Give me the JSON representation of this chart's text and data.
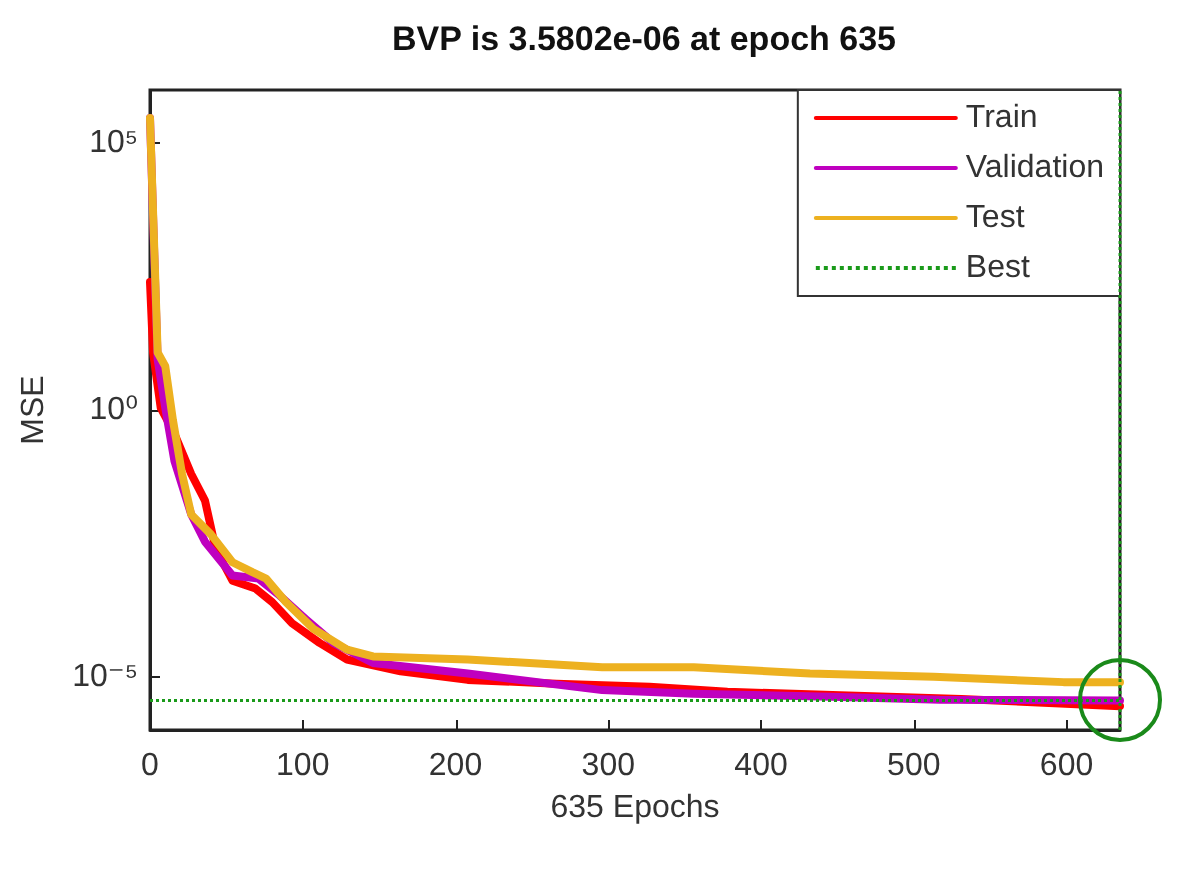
{
  "chart_data": {
    "type": "line",
    "title": "BVP is 3.5802e-06 at epoch 635",
    "xlabel": "635 Epochs",
    "ylabel": "MSE",
    "log": "y",
    "grid": false,
    "legend": "top right",
    "line_style": "solid",
    "marker": "none",
    "xlim": [
      0,
      635
    ],
    "xticks": [
      0,
      100,
      200,
      300,
      400,
      500,
      600
    ],
    "ylim": [
      1e-06,
      1000000.0
    ],
    "yticks": [
      {
        "value": 1e-05,
        "label": "10⁻⁵"
      },
      {
        "value": 1,
        "label": "10⁰"
      },
      {
        "value": 100000.0,
        "label": "10⁵"
      }
    ],
    "series": [
      {
        "name": "Train",
        "color": "#ff0000",
        "x": [
          0,
          2,
          7,
          16,
          27,
          36,
          43,
          54,
          69,
          80,
          93,
          111,
          129,
          164,
          208,
          266,
          327,
          378,
          452,
          531,
          635
        ],
        "values": [
          250,
          12,
          1.1,
          0.36,
          0.063,
          0.02,
          0.0025,
          0.00063,
          0.00045,
          0.00025,
          0.0001,
          4.3e-05,
          2.1e-05,
          1.26e-05,
          8.7e-06,
          7.4e-06,
          6.5e-06,
          5.2e-06,
          4.5e-06,
          3.8e-06,
          2.8e-06
        ]
      },
      {
        "name": "Validation",
        "color": "#bf00bf",
        "x": [
          0,
          3,
          5,
          10,
          16,
          27,
          36,
          54,
          71,
          85,
          102,
          120,
          146,
          208,
          296,
          356,
          446,
          517,
          635
        ],
        "values": [
          300000.0,
          520,
          8.9,
          1.1,
          0.11,
          0.011,
          0.0034,
          0.00079,
          0.00069,
          0.00033,
          0.00012,
          4.3e-05,
          1.8e-05,
          1.15e-05,
          5.6e-06,
          4.8e-06,
          4.2e-06,
          3.7e-06,
          3.58e-06
        ]
      },
      {
        "name": "Test",
        "color": "#edb120",
        "x": [
          0,
          3,
          5,
          10,
          15,
          21,
          27,
          40,
          54,
          67,
          76,
          89,
          107,
          129,
          146,
          208,
          296,
          356,
          432,
          513,
          598,
          635
        ],
        "values": [
          300000.0,
          700,
          12,
          6.6,
          0.65,
          0.063,
          0.011,
          0.0046,
          0.0014,
          0.00091,
          0.00069,
          0.00025,
          7.9e-05,
          3.2e-05,
          2.4e-05,
          2.1e-05,
          1.5e-05,
          1.5e-05,
          1.15e-05,
          1e-05,
          7.9e-06,
          7.9e-06
        ]
      }
    ],
    "ref_lines": [
      {
        "axis": "x",
        "value": 635,
        "label": "Best",
        "color": "#1a9a1a",
        "line_style": "dotted"
      },
      {
        "axis": "y",
        "value": 3.58e-06,
        "color": "#1a9a1a",
        "line_style": "dotted"
      }
    ]
  }
}
